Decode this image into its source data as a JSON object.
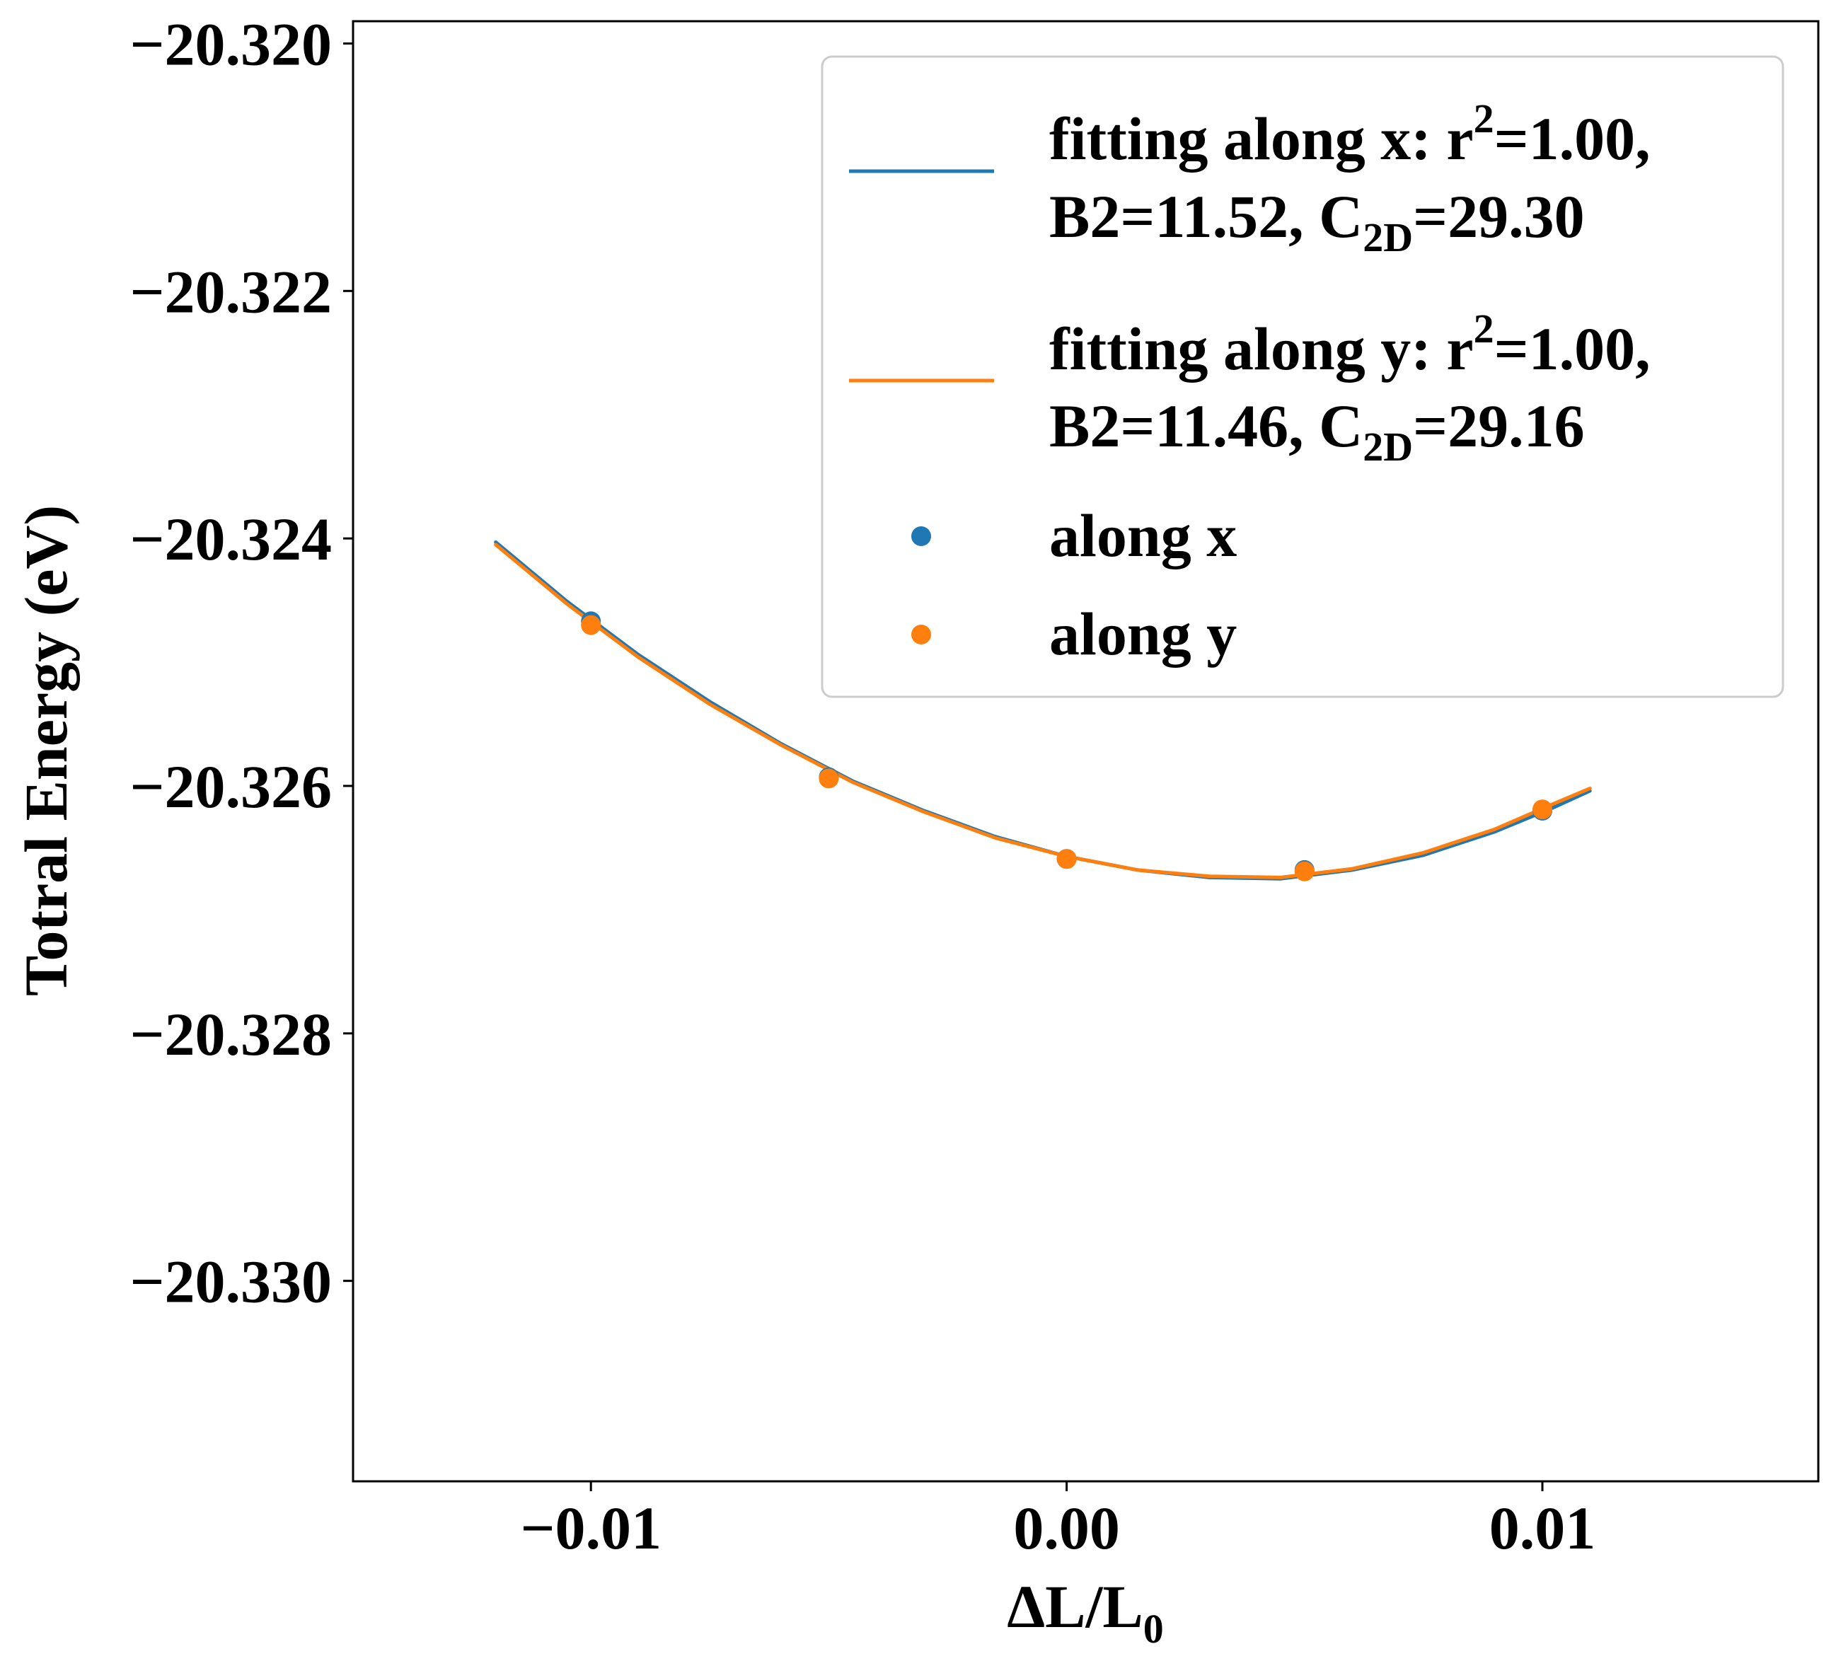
{
  "chart_data": {
    "type": "scatter",
    "xlabel_main": "ΔL/L",
    "xlabel_sub": "0",
    "ylabel": "Totral Energy (eV)",
    "xlim": [
      -0.015,
      0.0158
    ],
    "ylim": [
      -20.33162,
      -20.31982
    ],
    "x_ticks": [
      -0.01,
      0.0,
      0.01
    ],
    "x_tick_labels": [
      "−0.01",
      "0.00",
      "0.01"
    ],
    "y_ticks": [
      -20.32,
      -20.322,
      -20.324,
      -20.326,
      -20.328,
      -20.33
    ],
    "y_tick_labels": [
      "−20.320",
      "−20.322",
      "−20.324",
      "−20.326",
      "−20.328",
      "−20.330"
    ],
    "grid": false,
    "legend_position": "top-right",
    "colors": {
      "x": "#1f77b4",
      "y": "#ff7f0e"
    },
    "fits": [
      {
        "legend_line1": "fitting along x: r",
        "legend_sup": "2",
        "legend_line1_end": "=1.00,",
        "legend_line2_a": "B2=11.52, C",
        "legend_sub": "2D",
        "legend_line2_b": "=29.30",
        "color": "#1f77b4",
        "x": [
          -0.012,
          -0.0105,
          -0.009,
          -0.0075,
          -0.006,
          -0.0045,
          -0.003,
          -0.0015,
          0.0,
          0.0015,
          0.003,
          0.0045,
          0.006,
          0.0075,
          0.009,
          0.0102,
          0.011
        ],
        "y": [
          -20.32403,
          -20.32451,
          -20.32494,
          -20.32532,
          -20.32566,
          -20.32596,
          -20.3262,
          -20.32641,
          -20.32657,
          -20.32668,
          -20.32674,
          -20.32675,
          -20.32668,
          -20.32656,
          -20.32637,
          -20.32618,
          -20.32604
        ]
      },
      {
        "legend_line1": "fitting along y: r",
        "legend_sup": "2",
        "legend_line1_end": "=1.00,",
        "legend_line2_a": "B2=11.46, C",
        "legend_sub": "2D",
        "legend_line2_b": "=29.16",
        "color": "#ff7f0e",
        "x": [
          -0.012,
          -0.0105,
          -0.009,
          -0.0075,
          -0.006,
          -0.0045,
          -0.003,
          -0.0015,
          0.0,
          0.0015,
          0.003,
          0.0045,
          0.006,
          0.0075,
          0.009,
          0.0102,
          0.011
        ],
        "y": [
          -20.32405,
          -20.32453,
          -20.32496,
          -20.32534,
          -20.32567,
          -20.32597,
          -20.32621,
          -20.32642,
          -20.32657,
          -20.32668,
          -20.32673,
          -20.32674,
          -20.32667,
          -20.32654,
          -20.32635,
          -20.32615,
          -20.32602
        ]
      }
    ],
    "series": [
      {
        "name": "along x",
        "color": "#1f77b4",
        "x": [
          -0.01,
          -0.005,
          0.0,
          0.005,
          0.01
        ],
        "y": [
          -20.32467,
          -20.32593,
          -20.32659,
          -20.32668,
          -20.3262
        ]
      },
      {
        "name": "along y",
        "color": "#ff7f0e",
        "x": [
          -0.01,
          -0.005,
          0.0,
          0.005,
          0.01
        ],
        "y": [
          -20.3247,
          -20.32594,
          -20.32659,
          -20.32669,
          -20.32619
        ]
      }
    ]
  }
}
